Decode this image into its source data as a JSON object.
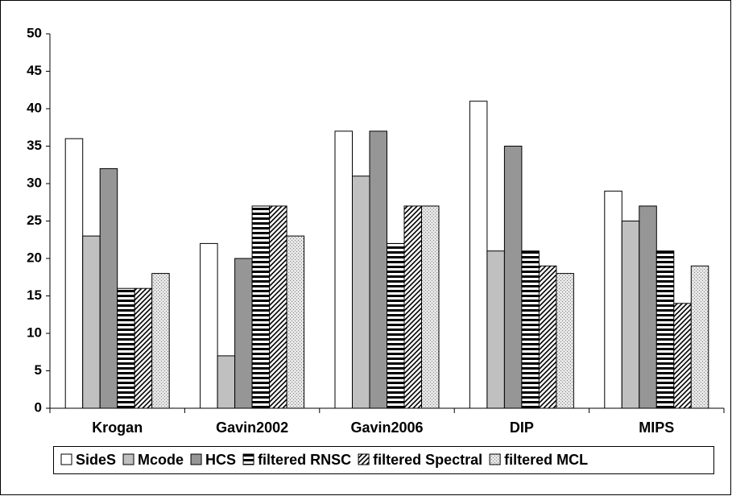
{
  "chart_data": {
    "type": "bar",
    "categories": [
      "Krogan",
      "Gavin2002",
      "Gavin2006",
      "DIP",
      "MIPS"
    ],
    "series": [
      {
        "name": "SideS",
        "color": "#ffffff",
        "pattern": "solid",
        "values": [
          36,
          22,
          37,
          41,
          29
        ]
      },
      {
        "name": "Mcode",
        "color": "#c0c0c0",
        "pattern": "solid",
        "values": [
          23,
          7,
          31,
          21,
          25
        ]
      },
      {
        "name": "HCS",
        "color": "#969696",
        "pattern": "solid",
        "values": [
          32,
          20,
          37,
          35,
          27
        ]
      },
      {
        "name": "filtered RNSC",
        "color": "#000000",
        "pattern": "horizontal",
        "values": [
          16,
          27,
          22,
          21,
          21
        ]
      },
      {
        "name": "filtered Spectral",
        "color": "#000000",
        "pattern": "diagonal",
        "values": [
          16,
          27,
          27,
          19,
          14
        ]
      },
      {
        "name": "filtered MCL",
        "color": "#808080",
        "pattern": "dots",
        "values": [
          18,
          23,
          27,
          18,
          19
        ]
      }
    ],
    "ylim": [
      0,
      50
    ],
    "yticks": [
      0,
      5,
      10,
      15,
      20,
      25,
      30,
      35,
      40,
      45,
      50
    ],
    "grid": false,
    "legend": "bottom"
  }
}
